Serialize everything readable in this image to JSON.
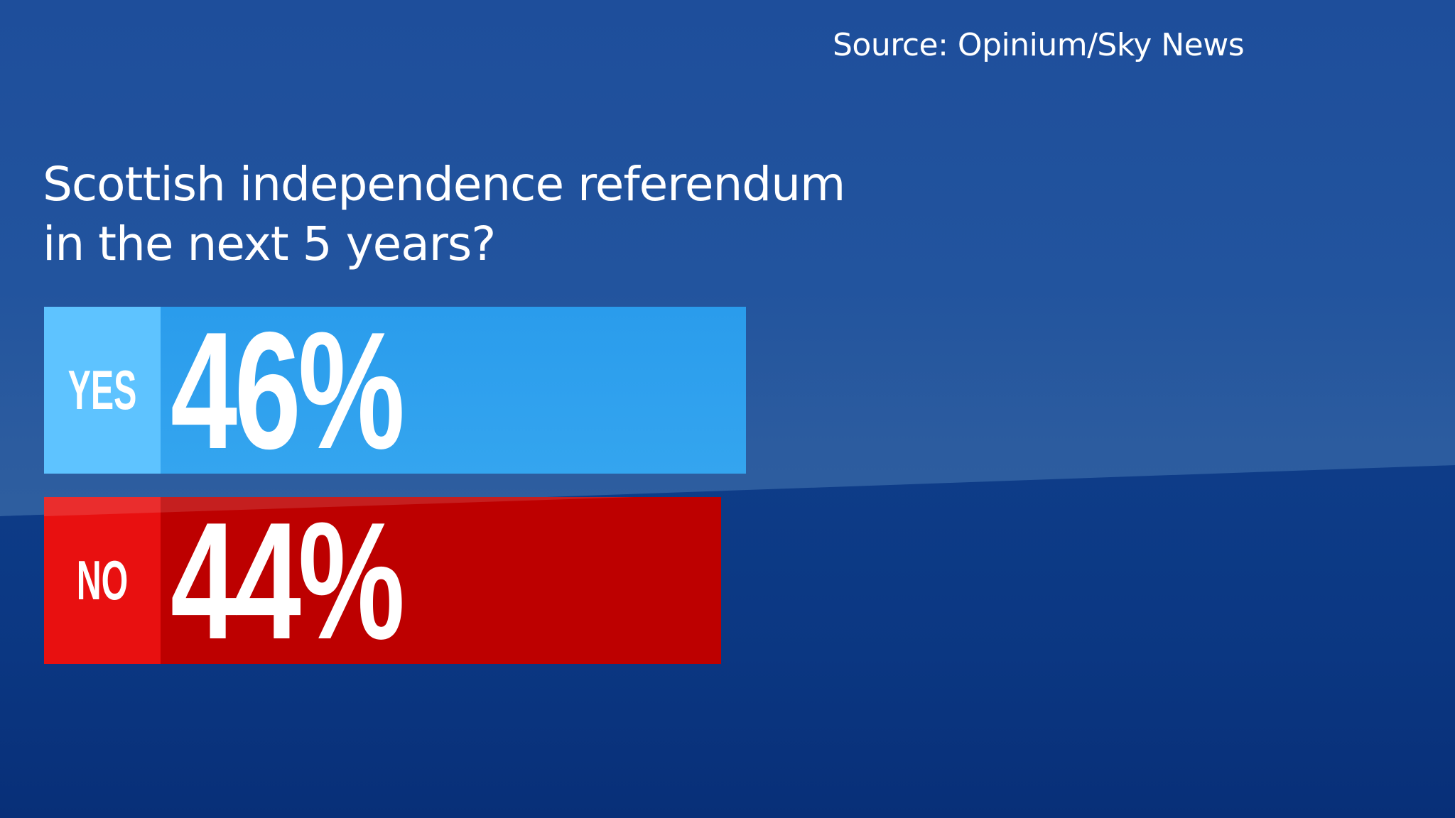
{
  "source": "Source: Opinium/Sky News",
  "title_line1": "Scottish independence referendum",
  "title_line2": "in the next 5 years?",
  "bars": [
    {
      "label": "YES",
      "value_text": "46%",
      "color": "#2ea2ee",
      "label_color": "#5ec3ff"
    },
    {
      "label": "NO",
      "value_text": "44%",
      "color": "#bd0000",
      "label_color": "#e81010"
    }
  ],
  "chart_data": {
    "type": "bar",
    "orientation": "horizontal",
    "title": "Scottish independence referendum in the next 5 years?",
    "source": "Source: Opinium/Sky News",
    "categories": [
      "YES",
      "NO"
    ],
    "values": [
      46,
      44
    ],
    "unit": "%",
    "colors": [
      "#2ea2ee",
      "#bd0000"
    ],
    "xlabel": "",
    "ylabel": "",
    "grid": false,
    "legend": "none"
  }
}
